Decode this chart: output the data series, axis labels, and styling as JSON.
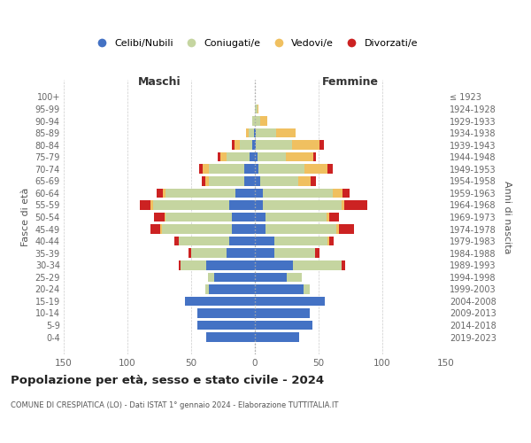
{
  "age_groups": [
    "0-4",
    "5-9",
    "10-14",
    "15-19",
    "20-24",
    "25-29",
    "30-34",
    "35-39",
    "40-44",
    "45-49",
    "50-54",
    "55-59",
    "60-64",
    "65-69",
    "70-74",
    "75-79",
    "80-84",
    "85-89",
    "90-94",
    "95-99",
    "100+"
  ],
  "birth_years": [
    "2019-2023",
    "2014-2018",
    "2009-2013",
    "2004-2008",
    "1999-2003",
    "1994-1998",
    "1989-1993",
    "1984-1988",
    "1979-1983",
    "1974-1978",
    "1969-1973",
    "1964-1968",
    "1959-1963",
    "1954-1958",
    "1949-1953",
    "1944-1948",
    "1939-1943",
    "1934-1938",
    "1929-1933",
    "1924-1928",
    "≤ 1923"
  ],
  "colors": {
    "celibe": "#4472c4",
    "coniugato": "#c5d5a0",
    "vedovo": "#f0c060",
    "divorziato": "#cc2222"
  },
  "maschi": {
    "celibe": [
      38,
      45,
      45,
      55,
      36,
      32,
      38,
      22,
      20,
      18,
      18,
      20,
      15,
      8,
      8,
      4,
      2,
      1,
      0,
      0,
      0
    ],
    "coniugato": [
      0,
      0,
      0,
      0,
      3,
      5,
      20,
      28,
      40,
      55,
      52,
      60,
      55,
      28,
      28,
      18,
      10,
      4,
      2,
      0,
      0
    ],
    "vedovo": [
      0,
      0,
      0,
      0,
      0,
      0,
      0,
      0,
      0,
      1,
      1,
      2,
      2,
      3,
      5,
      5,
      4,
      2,
      0,
      0,
      0
    ],
    "divorziato": [
      0,
      0,
      0,
      0,
      0,
      0,
      2,
      2,
      3,
      8,
      8,
      8,
      5,
      3,
      3,
      2,
      2,
      0,
      0,
      0,
      0
    ]
  },
  "femmine": {
    "nubile": [
      35,
      45,
      43,
      55,
      38,
      25,
      30,
      15,
      15,
      8,
      8,
      6,
      6,
      4,
      3,
      2,
      1,
      1,
      0,
      0,
      0
    ],
    "coniugata": [
      0,
      0,
      0,
      0,
      5,
      12,
      38,
      32,
      42,
      56,
      48,
      62,
      55,
      30,
      36,
      22,
      28,
      16,
      4,
      2,
      0
    ],
    "vedova": [
      0,
      0,
      0,
      0,
      0,
      0,
      0,
      0,
      1,
      2,
      2,
      2,
      8,
      10,
      18,
      22,
      22,
      15,
      6,
      1,
      0
    ],
    "divorziata": [
      0,
      0,
      0,
      0,
      0,
      0,
      3,
      4,
      4,
      12,
      8,
      18,
      5,
      4,
      4,
      2,
      3,
      0,
      0,
      0,
      0
    ]
  },
  "xlim": 150,
  "title": "Popolazione per età, sesso e stato civile - 2024",
  "subtitle": "COMUNE DI CRESPIATICA (LO) - Dati ISTAT 1° gennaio 2024 - Elaborazione TUTTITALIA.IT",
  "ylabel_left": "Fasce di età",
  "ylabel_right": "Anni di nascita",
  "xlabel_left": "Maschi",
  "xlabel_right": "Femmine",
  "legend": [
    "Celibi/Nubili",
    "Coniugati/e",
    "Vedovi/e",
    "Divorzati/e"
  ]
}
